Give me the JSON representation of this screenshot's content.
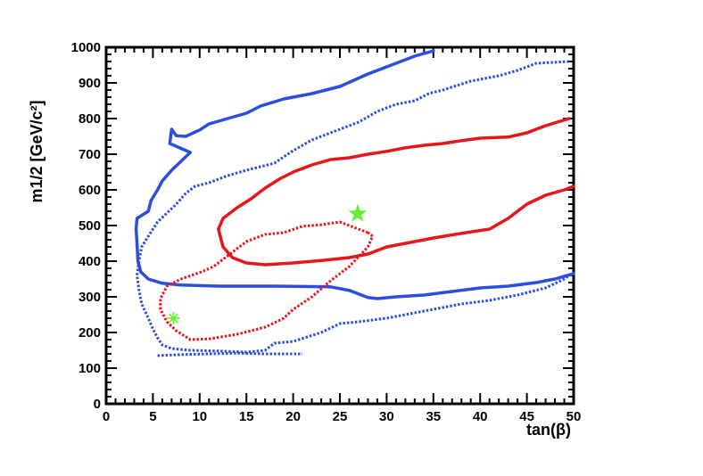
{
  "chart_data": {
    "type": "line",
    "xlabel": "tan(β)",
    "ylabel": "m1/2 [GeV/c²]",
    "xlim": [
      0,
      50
    ],
    "ylim": [
      0,
      1000
    ],
    "x_ticks": [
      0,
      5,
      10,
      15,
      20,
      25,
      30,
      35,
      40,
      45,
      50
    ],
    "y_ticks": [
      0,
      100,
      200,
      300,
      400,
      500,
      600,
      700,
      800,
      900,
      1000
    ],
    "grid": false,
    "colors": {
      "blue": "#2b4ee0",
      "red": "#e8161a",
      "green": "#66ee33"
    },
    "series": [
      {
        "color": "blue",
        "style": "solid",
        "points": [
          [
            35.0,
            990
          ],
          [
            33.0,
            975
          ],
          [
            30.0,
            945
          ],
          [
            28.0,
            925
          ],
          [
            25.0,
            890
          ],
          [
            22.0,
            870
          ],
          [
            19.0,
            855
          ],
          [
            16.5,
            835
          ],
          [
            15.0,
            815
          ],
          [
            13.0,
            800
          ],
          [
            11.0,
            785
          ],
          [
            10.0,
            768
          ],
          [
            8.5,
            750
          ],
          [
            7.5,
            752
          ],
          [
            7.0,
            770
          ],
          [
            6.8,
            730
          ],
          [
            9.0,
            705
          ],
          [
            8.0,
            680
          ],
          [
            7.0,
            655
          ],
          [
            6.0,
            625
          ],
          [
            5.5,
            600
          ],
          [
            4.8,
            570
          ],
          [
            4.5,
            540
          ],
          [
            3.3,
            520
          ],
          [
            3.2,
            490
          ],
          [
            3.3,
            450
          ],
          [
            3.4,
            400
          ],
          [
            3.7,
            370
          ],
          [
            4.5,
            350
          ],
          [
            6.0,
            338
          ],
          [
            8.0,
            333
          ],
          [
            12.0,
            330
          ],
          [
            18.0,
            330
          ],
          [
            24.0,
            328
          ],
          [
            26.0,
            318
          ],
          [
            28.0,
            298
          ],
          [
            29.0,
            295
          ],
          [
            31.0,
            300
          ],
          [
            34.0,
            305
          ],
          [
            37.0,
            315
          ],
          [
            40.0,
            325
          ],
          [
            43.0,
            330
          ],
          [
            46.0,
            340
          ],
          [
            48.0,
            350
          ],
          [
            50.0,
            365
          ]
        ]
      },
      {
        "color": "blue",
        "style": "dotted",
        "points": [
          [
            49.5,
            960
          ],
          [
            46.0,
            955
          ],
          [
            44.0,
            935
          ],
          [
            42.0,
            920
          ],
          [
            39.0,
            905
          ],
          [
            36.0,
            880
          ],
          [
            34.5,
            870
          ],
          [
            33.0,
            850
          ],
          [
            31.0,
            840
          ],
          [
            29.0,
            820
          ],
          [
            27.0,
            790
          ],
          [
            25.0,
            770
          ],
          [
            22.0,
            740
          ],
          [
            20.0,
            710
          ],
          [
            18.0,
            675
          ],
          [
            15.0,
            655
          ],
          [
            13.0,
            640
          ],
          [
            11.0,
            620
          ],
          [
            9.5,
            610
          ],
          [
            8.5,
            590
          ],
          [
            7.5,
            560
          ],
          [
            6.5,
            535
          ],
          [
            5.5,
            510
          ],
          [
            4.5,
            470
          ],
          [
            3.8,
            440
          ],
          [
            3.5,
            400
          ],
          [
            3.3,
            360
          ],
          [
            3.5,
            320
          ],
          [
            3.8,
            280
          ],
          [
            4.5,
            240
          ],
          [
            5.0,
            210
          ],
          [
            5.5,
            185
          ],
          [
            6.0,
            165
          ],
          [
            7.0,
            155
          ],
          [
            9.0,
            150
          ],
          [
            12.0,
            148
          ],
          [
            15.0,
            145
          ],
          [
            17.0,
            150
          ],
          [
            18.0,
            170
          ],
          [
            20.0,
            175
          ],
          [
            23.0,
            200
          ],
          [
            25.0,
            225
          ],
          [
            27.0,
            230
          ],
          [
            30.0,
            240
          ],
          [
            33.0,
            255
          ],
          [
            36.0,
            270
          ],
          [
            38.0,
            280
          ],
          [
            41.0,
            290
          ],
          [
            44.0,
            305
          ],
          [
            47.0,
            325
          ],
          [
            49.0,
            350
          ],
          [
            50.0,
            370
          ]
        ]
      },
      {
        "color": "blue",
        "style": "dotted",
        "points": [
          [
            5.5,
            135
          ],
          [
            8.0,
            138
          ],
          [
            11.0,
            140
          ],
          [
            14.0,
            142
          ],
          [
            17.0,
            140
          ],
          [
            21.0,
            140
          ]
        ]
      },
      {
        "color": "red",
        "style": "solid",
        "points": [
          [
            49.5,
            800
          ],
          [
            47.0,
            780
          ],
          [
            45.0,
            760
          ],
          [
            43.0,
            748
          ],
          [
            40.0,
            745
          ],
          [
            38.0,
            738
          ],
          [
            36.0,
            730
          ],
          [
            34.0,
            725
          ],
          [
            32.0,
            718
          ],
          [
            30.0,
            708
          ],
          [
            28.0,
            700
          ],
          [
            26.0,
            690
          ],
          [
            24.0,
            685
          ],
          [
            22.0,
            670
          ],
          [
            20.0,
            650
          ],
          [
            18.5,
            630
          ],
          [
            17.0,
            605
          ],
          [
            15.5,
            575
          ],
          [
            14.0,
            550
          ],
          [
            12.5,
            520
          ],
          [
            12.0,
            490
          ],
          [
            12.5,
            440
          ],
          [
            13.5,
            410
          ],
          [
            15.0,
            395
          ],
          [
            17.0,
            390
          ],
          [
            20.0,
            395
          ],
          [
            23.0,
            402
          ],
          [
            26.0,
            410
          ],
          [
            28.0,
            420
          ],
          [
            30.0,
            440
          ],
          [
            32.0,
            450
          ],
          [
            35.0,
            465
          ],
          [
            38.0,
            478
          ],
          [
            41.0,
            490
          ],
          [
            43.0,
            520
          ],
          [
            45.0,
            560
          ],
          [
            47.0,
            585
          ],
          [
            49.0,
            600
          ],
          [
            50.0,
            610
          ]
        ]
      },
      {
        "color": "red",
        "style": "dotted",
        "points": [
          [
            28.0,
            480
          ],
          [
            26.5,
            495
          ],
          [
            25.0,
            510
          ],
          [
            23.0,
            502
          ],
          [
            21.0,
            498
          ],
          [
            19.0,
            480
          ],
          [
            17.0,
            475
          ],
          [
            15.0,
            455
          ],
          [
            13.0,
            415
          ],
          [
            11.5,
            385
          ],
          [
            10.0,
            368
          ],
          [
            8.0,
            350
          ],
          [
            6.5,
            330
          ],
          [
            5.8,
            295
          ],
          [
            5.8,
            265
          ],
          [
            6.5,
            230
          ],
          [
            7.5,
            205
          ],
          [
            9.0,
            180
          ],
          [
            11.0,
            182
          ],
          [
            14.0,
            195
          ],
          [
            17.0,
            215
          ],
          [
            19.0,
            240
          ],
          [
            20.0,
            265
          ],
          [
            22.0,
            300
          ],
          [
            24.0,
            345
          ],
          [
            26.0,
            385
          ],
          [
            28.0,
            440
          ],
          [
            28.5,
            470
          ],
          [
            28.0,
            480
          ]
        ]
      }
    ],
    "markers": [
      {
        "shape": "star-filled",
        "x": 26.9,
        "y": 533,
        "color": "green"
      },
      {
        "shape": "asterisk",
        "x": 7.2,
        "y": 240,
        "color": "green"
      }
    ]
  }
}
